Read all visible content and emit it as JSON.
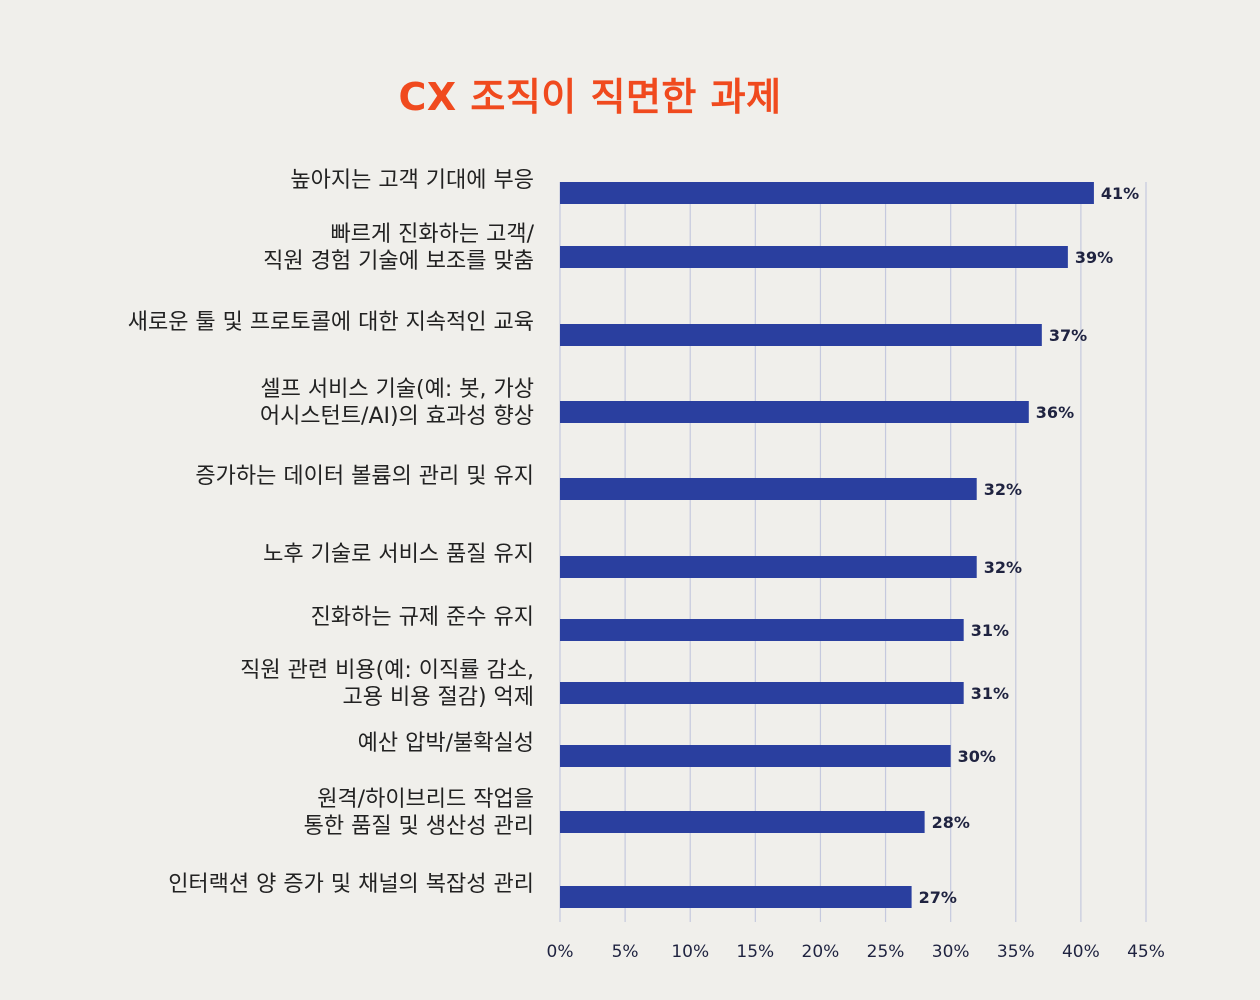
{
  "colors": {
    "title": "#f04a1e",
    "bar": "#2a3f9f",
    "grid": "#c5c9de",
    "background": "#f0efeb"
  },
  "chart_data": {
    "type": "bar",
    "orientation": "horizontal",
    "title": "CX 조직이 직면한 과제",
    "xlabel": "",
    "ylabel": "",
    "xlim": [
      0,
      45
    ],
    "grid": true,
    "categories": [
      [
        "높아지는 고객 기대에 부응"
      ],
      [
        "빠르게 진화하는 고객/",
        "직원 경험 기술에 보조를 맞춤"
      ],
      [
        "새로운 툴 및 프로토콜에 대한 지속적인 교육"
      ],
      [
        "셀프 서비스 기술(예: 봇, 가상",
        "어시스턴트/AI)의 효과성 향상"
      ],
      [
        "증가하는 데이터 볼륨의 관리 및 유지"
      ],
      [
        "노후 기술로 서비스 품질 유지"
      ],
      [
        "진화하는 규제 준수 유지"
      ],
      [
        "직원 관련 비용(예: 이직률 감소,",
        "고용 비용 절감) 억제"
      ],
      [
        "예산 압박/불확실성"
      ],
      [
        "원격/하이브리드 작업을",
        "통한 품질 및 생산성 관리"
      ],
      [
        "인터랙션 양 증가 및 채널의 복잡성 관리"
      ]
    ],
    "values": [
      41,
      39,
      37,
      36,
      32,
      32,
      31,
      31,
      30,
      28,
      27
    ],
    "value_labels": [
      "41%",
      "39%",
      "37%",
      "36%",
      "32%",
      "32%",
      "31%",
      "31%",
      "30%",
      "28%",
      "27%"
    ],
    "ticks": [
      0,
      5,
      10,
      15,
      20,
      25,
      30,
      35,
      40,
      45
    ],
    "tick_labels": [
      "0%",
      "5%",
      "10%",
      "15%",
      "20%",
      "25%",
      "30%",
      "35%",
      "40%",
      "45%"
    ]
  }
}
